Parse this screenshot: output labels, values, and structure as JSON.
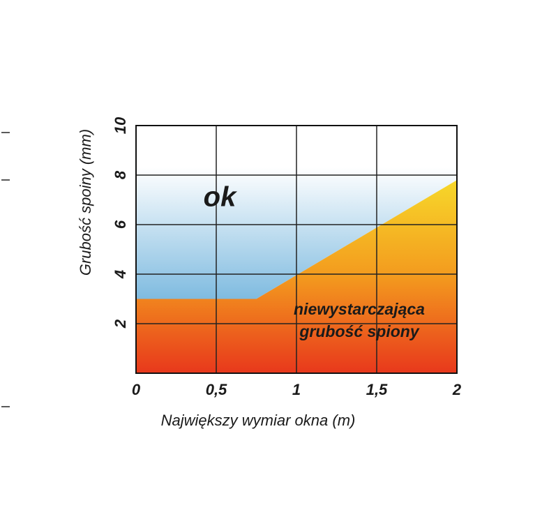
{
  "chart_data": {
    "type": "area",
    "xlabel": "Największy wymiar okna (m)",
    "ylabel": "Grubość spoiny (mm)",
    "x": [
      0,
      0.75,
      2
    ],
    "series": [
      {
        "values": [
          3,
          3,
          7.8
        ]
      }
    ],
    "below_colors": [
      "#f7d82a",
      "#f39a1e",
      "#e8381c"
    ],
    "above_colors": [
      "#7fbbe0",
      "#ffffff"
    ],
    "xlim": [
      0,
      2
    ],
    "ylim": [
      0,
      10
    ],
    "xticks": [
      0,
      {
        "value": 0.5,
        "label": "0,5"
      },
      1,
      {
        "value": 1.5,
        "label": "1,5"
      },
      2
    ],
    "yticks": [
      2,
      4,
      6,
      8,
      10
    ],
    "grid": true,
    "annotations": [
      {
        "lines": [
          "ok"
        ]
      },
      {
        "lines": [
          "niewystarczająca",
          "grubość spiony"
        ]
      }
    ]
  }
}
